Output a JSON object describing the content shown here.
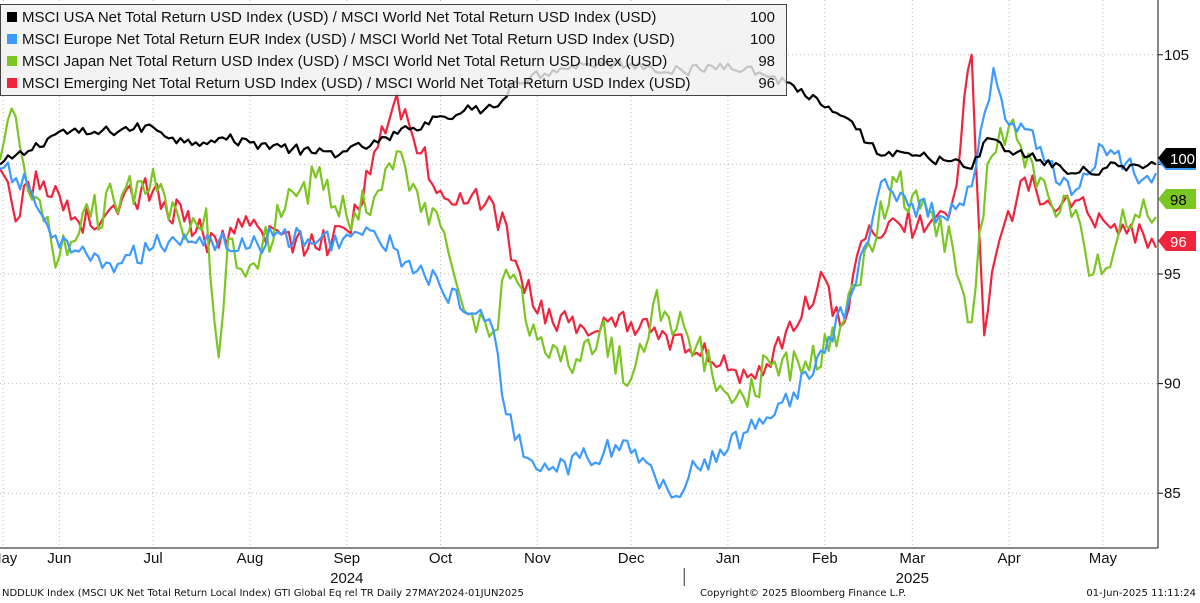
{
  "chart_data": {
    "type": "line",
    "ylim": [
      82.5,
      107.5
    ],
    "yticks": [
      "85",
      "90",
      "95",
      "100",
      "105"
    ],
    "ytick_values": [
      85,
      90,
      95,
      100,
      105
    ],
    "xlim": [
      "2024-05-27",
      "2025-06-01"
    ],
    "months": [
      {
        "label": "May",
        "date": "2024-05-28"
      },
      {
        "label": "Jun",
        "date": "2024-06-15"
      },
      {
        "label": "Jul",
        "date": "2024-07-15"
      },
      {
        "label": "Aug",
        "date": "2024-08-15"
      },
      {
        "label": "Sep",
        "date": "2024-09-15"
      },
      {
        "label": "Oct",
        "date": "2024-10-15"
      },
      {
        "label": "Nov",
        "date": "2024-11-15"
      },
      {
        "label": "Dec",
        "date": "2024-12-15"
      },
      {
        "label": "Jan",
        "date": "2025-01-15"
      },
      {
        "label": "Feb",
        "date": "2025-02-15"
      },
      {
        "label": "Mar",
        "date": "2025-03-15"
      },
      {
        "label": "Apr",
        "date": "2025-04-15"
      },
      {
        "label": "May",
        "date": "2025-05-15"
      }
    ],
    "years": [
      {
        "label": "2024",
        "date": "2024-09-15"
      },
      {
        "label": "2025",
        "date": "2025-03-15"
      }
    ],
    "year_divider": "2025-01-01",
    "grid": true,
    "legend_position": "top-left",
    "series": [
      {
        "name": "MSCI USA Net Total Return USD Index (USD) / MSCI World Net Total Return USD Index (USD)",
        "last": "100",
        "color": "#000000",
        "points": [
          [
            "2024-05-27",
            100.0
          ],
          [
            "2024-06-05",
            100.6
          ],
          [
            "2024-06-15",
            101.5
          ],
          [
            "2024-06-25",
            101.4
          ],
          [
            "2024-07-05",
            101.6
          ],
          [
            "2024-07-15",
            101.7
          ],
          [
            "2024-07-25",
            101.0
          ],
          [
            "2024-08-05",
            101.2
          ],
          [
            "2024-08-15",
            101.0
          ],
          [
            "2024-08-25",
            100.8
          ],
          [
            "2024-09-05",
            100.5
          ],
          [
            "2024-09-15",
            100.6
          ],
          [
            "2024-09-25",
            101.0
          ],
          [
            "2024-10-05",
            101.6
          ],
          [
            "2024-10-15",
            102.2
          ],
          [
            "2024-10-25",
            102.5
          ],
          [
            "2024-11-01",
            102.6
          ],
          [
            "2024-11-08",
            103.8
          ],
          [
            "2024-11-20",
            104.3
          ],
          [
            "2024-12-01",
            104.6
          ],
          [
            "2024-12-15",
            104.6
          ],
          [
            "2025-01-01",
            104.2
          ],
          [
            "2025-01-15",
            104.6
          ],
          [
            "2025-01-25",
            104.2
          ],
          [
            "2025-02-05",
            103.6
          ],
          [
            "2025-02-15",
            102.6
          ],
          [
            "2025-02-25",
            101.6
          ],
          [
            "2025-03-05",
            100.4
          ],
          [
            "2025-03-15",
            100.4
          ],
          [
            "2025-03-25",
            100.2
          ],
          [
            "2025-04-03",
            99.8
          ],
          [
            "2025-04-08",
            101.2
          ],
          [
            "2025-04-15",
            100.6
          ],
          [
            "2025-04-25",
            100.2
          ],
          [
            "2025-05-05",
            99.6
          ],
          [
            "2025-05-15",
            99.8
          ],
          [
            "2025-05-25",
            100.0
          ],
          [
            "2025-06-01",
            100.0
          ]
        ]
      },
      {
        "name": "MSCI Europe Net Total Return EUR Index (USD) / MSCI World Net Total Return USD Index (USD)",
        "last": "100",
        "color": "#3d9bff",
        "points": [
          [
            "2024-05-27",
            99.8
          ],
          [
            "2024-06-05",
            99.0
          ],
          [
            "2024-06-15",
            96.2
          ],
          [
            "2024-06-25",
            95.6
          ],
          [
            "2024-07-05",
            95.5
          ],
          [
            "2024-07-15",
            96.2
          ],
          [
            "2024-07-25",
            96.8
          ],
          [
            "2024-08-05",
            96.5
          ],
          [
            "2024-08-15",
            96.2
          ],
          [
            "2024-08-25",
            96.8
          ],
          [
            "2024-09-05",
            96.4
          ],
          [
            "2024-09-15",
            96.8
          ],
          [
            "2024-09-25",
            96.6
          ],
          [
            "2024-10-05",
            95.6
          ],
          [
            "2024-10-15",
            94.4
          ],
          [
            "2024-10-25",
            93.2
          ],
          [
            "2024-11-01",
            92.4
          ],
          [
            "2024-11-05",
            88.6
          ],
          [
            "2024-11-12",
            86.6
          ],
          [
            "2024-11-20",
            86.2
          ],
          [
            "2024-12-01",
            86.6
          ],
          [
            "2024-12-10",
            87.2
          ],
          [
            "2024-12-20",
            86.4
          ],
          [
            "2024-12-28",
            84.8
          ],
          [
            "2025-01-05",
            86.2
          ],
          [
            "2025-01-15",
            87.0
          ],
          [
            "2025-01-25",
            88.4
          ],
          [
            "2025-02-05",
            89.6
          ],
          [
            "2025-02-15",
            91.4
          ],
          [
            "2025-02-25",
            94.6
          ],
          [
            "2025-03-05",
            99.2
          ],
          [
            "2025-03-15",
            98.2
          ],
          [
            "2025-03-25",
            97.6
          ],
          [
            "2025-04-03",
            99.0
          ],
          [
            "2025-04-10",
            104.4
          ],
          [
            "2025-04-15",
            101.8
          ],
          [
            "2025-04-25",
            100.8
          ],
          [
            "2025-05-05",
            98.6
          ],
          [
            "2025-05-15",
            100.8
          ],
          [
            "2025-05-25",
            99.6
          ],
          [
            "2025-06-01",
            99.6
          ]
        ]
      },
      {
        "name": "MSCI Japan Net Total Return USD Index (USD) / MSCI World Net Total Return USD Index (USD)",
        "last": "98",
        "color": "#7cc624",
        "points": [
          [
            "2024-05-27",
            100.2
          ],
          [
            "2024-06-01",
            102.2
          ],
          [
            "2024-06-05",
            98.8
          ],
          [
            "2024-06-15",
            95.8
          ],
          [
            "2024-06-25",
            97.6
          ],
          [
            "2024-07-05",
            98.6
          ],
          [
            "2024-07-15",
            99.8
          ],
          [
            "2024-07-25",
            96.6
          ],
          [
            "2024-08-01",
            98.0
          ],
          [
            "2024-08-05",
            91.2
          ],
          [
            "2024-08-08",
            96.6
          ],
          [
            "2024-08-15",
            95.4
          ],
          [
            "2024-08-25",
            97.6
          ],
          [
            "2024-09-05",
            99.4
          ],
          [
            "2024-09-15",
            97.6
          ],
          [
            "2024-09-25",
            98.8
          ],
          [
            "2024-10-01",
            100.6
          ],
          [
            "2024-10-05",
            98.8
          ],
          [
            "2024-10-15",
            97.2
          ],
          [
            "2024-10-25",
            93.2
          ],
          [
            "2024-11-01",
            92.4
          ],
          [
            "2024-11-05",
            95.2
          ],
          [
            "2024-11-15",
            92.0
          ],
          [
            "2024-11-25",
            90.8
          ],
          [
            "2024-12-05",
            92.4
          ],
          [
            "2024-12-15",
            90.2
          ],
          [
            "2024-12-22",
            93.6
          ],
          [
            "2025-01-01",
            92.6
          ],
          [
            "2025-01-10",
            90.4
          ],
          [
            "2025-01-20",
            89.4
          ],
          [
            "2025-01-30",
            91.0
          ],
          [
            "2025-02-10",
            90.6
          ],
          [
            "2025-02-20",
            92.6
          ],
          [
            "2025-03-01",
            96.4
          ],
          [
            "2025-03-10",
            99.2
          ],
          [
            "2025-03-20",
            97.8
          ],
          [
            "2025-03-28",
            96.2
          ],
          [
            "2025-04-03",
            92.8
          ],
          [
            "2025-04-08",
            100.0
          ],
          [
            "2025-04-15",
            101.8
          ],
          [
            "2025-04-25",
            99.4
          ],
          [
            "2025-05-05",
            97.6
          ],
          [
            "2025-05-12",
            95.0
          ],
          [
            "2025-05-20",
            96.8
          ],
          [
            "2025-05-28",
            98.4
          ],
          [
            "2025-06-01",
            97.6
          ]
        ]
      },
      {
        "name": "MSCI Emerging Net Total Return USD Index (USD) / MSCI World Net Total Return USD Index (USD)",
        "last": "96",
        "color": "#f0243c",
        "points": [
          [
            "2024-05-27",
            99.8
          ],
          [
            "2024-06-01",
            97.4
          ],
          [
            "2024-06-05",
            99.2
          ],
          [
            "2024-06-15",
            98.6
          ],
          [
            "2024-06-25",
            97.2
          ],
          [
            "2024-07-05",
            98.4
          ],
          [
            "2024-07-15",
            98.8
          ],
          [
            "2024-07-25",
            97.4
          ],
          [
            "2024-08-05",
            96.2
          ],
          [
            "2024-08-15",
            97.2
          ],
          [
            "2024-08-25",
            96.8
          ],
          [
            "2024-09-05",
            96.2
          ],
          [
            "2024-09-15",
            97.0
          ],
          [
            "2024-09-25",
            100.8
          ],
          [
            "2024-10-01",
            103.2
          ],
          [
            "2024-10-05",
            101.8
          ],
          [
            "2024-10-15",
            98.8
          ],
          [
            "2024-10-25",
            98.6
          ],
          [
            "2024-11-01",
            98.2
          ],
          [
            "2024-11-08",
            95.6
          ],
          [
            "2024-11-15",
            93.2
          ],
          [
            "2024-11-25",
            92.8
          ],
          [
            "2024-12-05",
            92.4
          ],
          [
            "2024-12-15",
            92.8
          ],
          [
            "2024-12-25",
            92.4
          ],
          [
            "2025-01-05",
            91.4
          ],
          [
            "2025-01-15",
            90.6
          ],
          [
            "2025-01-25",
            90.8
          ],
          [
            "2025-02-05",
            92.4
          ],
          [
            "2025-02-15",
            94.8
          ],
          [
            "2025-02-20",
            92.6
          ],
          [
            "2025-02-28",
            96.6
          ],
          [
            "2025-03-10",
            97.4
          ],
          [
            "2025-03-20",
            97.2
          ],
          [
            "2025-03-28",
            98.4
          ],
          [
            "2025-04-03",
            105.0
          ],
          [
            "2025-04-07",
            92.2
          ],
          [
            "2025-04-12",
            96.6
          ],
          [
            "2025-04-20",
            99.4
          ],
          [
            "2025-05-01",
            98.0
          ],
          [
            "2025-05-10",
            97.8
          ],
          [
            "2025-05-20",
            96.8
          ],
          [
            "2025-05-28",
            96.8
          ],
          [
            "2025-06-01",
            96.2
          ]
        ]
      }
    ]
  },
  "footer": {
    "left": "NDDLUK Index (MSCI UK Net Total Return Local Index) GTI Global Eq rel TR  Daily 27MAY2024-01JUN2025",
    "center": "Copyright© 2025 Bloomberg Finance L.P.",
    "right": "01-Jun-2025 11:11:24"
  }
}
